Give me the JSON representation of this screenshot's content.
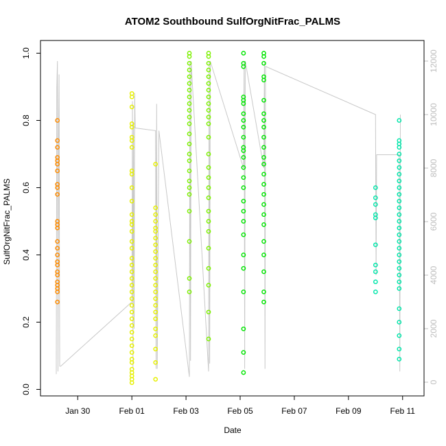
{
  "chart_data": {
    "type": "scatter",
    "title": "ATOM2 Southbound SulfOrgNitFrac_PALMS",
    "xlabel": "Date",
    "ylabel": "SulfOrgNitFrac_PALMS",
    "x_ticks": [
      "Jan 30",
      "Feb 01",
      "Feb 03",
      "Feb 05",
      "Feb 07",
      "Feb 09",
      "Feb 11"
    ],
    "x_tick_values": [
      "2017-01-30",
      "2017-02-01",
      "2017-02-03",
      "2017-02-05",
      "2017-02-07",
      "2017-02-09",
      "2017-02-11"
    ],
    "xlim": [
      "2017-01-28T15:00",
      "2017-02-11T19:00"
    ],
    "y_ticks": [
      "0.0",
      "0.2",
      "0.4",
      "0.6",
      "0.8",
      "1.0"
    ],
    "ylim": [
      0,
      1
    ],
    "y2_ticks": [
      "0",
      "2000",
      "4000",
      "6000",
      "8000",
      "10000",
      "12000"
    ],
    "y2lim": [
      0,
      12000
    ],
    "y2_color": "#bdbdbd",
    "grid": false,
    "series": [
      {
        "color": "#ff8c00",
        "x": [
          "2017-01-29T06:00",
          "2017-01-29T06:00",
          "2017-01-29T06:00",
          "2017-01-29T06:00",
          "2017-01-29T06:00",
          "2017-01-29T06:00",
          "2017-01-29T06:00",
          "2017-01-29T06:00",
          "2017-01-29T06:00",
          "2017-01-29T06:00",
          "2017-01-29T06:00",
          "2017-01-29T06:00",
          "2017-01-29T06:00",
          "2017-01-29T06:00",
          "2017-01-29T06:00",
          "2017-01-29T06:00",
          "2017-01-29T06:00",
          "2017-01-29T06:00",
          "2017-01-29T06:00",
          "2017-01-29T06:00",
          "2017-01-29T06:00",
          "2017-01-29T06:00",
          "2017-01-29T06:00",
          "2017-01-29T06:00",
          "2017-01-29T06:00"
        ],
        "y": [
          0.8,
          0.74,
          0.72,
          0.69,
          0.68,
          0.67,
          0.65,
          0.61,
          0.6,
          0.58,
          0.5,
          0.49,
          0.48,
          0.44,
          0.42,
          0.4,
          0.38,
          0.37,
          0.35,
          0.34,
          0.32,
          0.31,
          0.3,
          0.29,
          0.26
        ]
      },
      {
        "color": "#e6f000",
        "x": [
          "2017-02-01T00:00",
          "2017-02-01T00:00",
          "2017-02-01T00:00",
          "2017-02-01T00:00",
          "2017-02-01T00:00",
          "2017-02-01T00:00",
          "2017-02-01T00:00",
          "2017-02-01T00:00",
          "2017-02-01T00:00",
          "2017-02-01T00:00",
          "2017-02-01T00:00",
          "2017-02-01T00:00",
          "2017-02-01T00:00",
          "2017-02-01T00:00",
          "2017-02-01T00:00",
          "2017-02-01T00:00",
          "2017-02-01T00:00",
          "2017-02-01T00:00",
          "2017-02-01T00:00",
          "2017-02-01T00:00",
          "2017-02-01T00:00",
          "2017-02-01T00:00",
          "2017-02-01T00:00",
          "2017-02-01T00:00",
          "2017-02-01T00:00",
          "2017-02-01T00:00",
          "2017-02-01T00:00",
          "2017-02-01T00:00",
          "2017-02-01T00:00",
          "2017-02-01T00:00",
          "2017-02-01T00:00",
          "2017-02-01T00:00",
          "2017-02-01T00:00",
          "2017-02-01T00:00",
          "2017-02-01T00:00",
          "2017-02-01T00:00",
          "2017-02-01T00:00",
          "2017-02-01T00:00",
          "2017-02-01T00:00",
          "2017-02-01T00:00",
          "2017-02-01T21:00",
          "2017-02-01T21:00",
          "2017-02-01T21:00",
          "2017-02-01T21:00",
          "2017-02-01T21:00",
          "2017-02-01T21:00",
          "2017-02-01T21:00",
          "2017-02-01T21:00",
          "2017-02-01T21:00",
          "2017-02-01T21:00",
          "2017-02-01T21:00",
          "2017-02-01T21:00",
          "2017-02-01T21:00",
          "2017-02-01T21:00",
          "2017-02-01T21:00",
          "2017-02-01T21:00",
          "2017-02-01T21:00",
          "2017-02-01T21:00",
          "2017-02-01T21:00",
          "2017-02-01T21:00",
          "2017-02-01T21:00",
          "2017-02-01T21:00",
          "2017-02-01T21:00",
          "2017-02-01T21:00"
        ],
        "y": [
          0.88,
          0.87,
          0.84,
          0.79,
          0.78,
          0.75,
          0.74,
          0.72,
          0.65,
          0.64,
          0.6,
          0.56,
          0.52,
          0.49,
          0.47,
          0.44,
          0.42,
          0.39,
          0.37,
          0.35,
          0.33,
          0.31,
          0.29,
          0.27,
          0.25,
          0.23,
          0.21,
          0.19,
          0.17,
          0.15,
          0.13,
          0.11,
          0.09,
          0.08,
          0.06,
          0.05,
          0.04,
          0.03,
          0.02,
          0.5,
          0.67,
          0.54,
          0.52,
          0.5,
          0.48,
          0.47,
          0.45,
          0.43,
          0.41,
          0.39,
          0.37,
          0.35,
          0.33,
          0.31,
          0.29,
          0.27,
          0.25,
          0.23,
          0.21,
          0.18,
          0.16,
          0.12,
          0.08,
          0.03
        ]
      },
      {
        "color": "#7cf000",
        "x": [
          "2017-02-03T03:00",
          "2017-02-03T03:00",
          "2017-02-03T03:00",
          "2017-02-03T03:00",
          "2017-02-03T03:00",
          "2017-02-03T03:00",
          "2017-02-03T03:00",
          "2017-02-03T03:00",
          "2017-02-03T03:00",
          "2017-02-03T03:00",
          "2017-02-03T03:00",
          "2017-02-03T03:00",
          "2017-02-03T03:00",
          "2017-02-03T03:00",
          "2017-02-03T03:00",
          "2017-02-03T03:00",
          "2017-02-03T03:00",
          "2017-02-03T03:00",
          "2017-02-03T03:00",
          "2017-02-03T03:00",
          "2017-02-03T03:00",
          "2017-02-03T03:00",
          "2017-02-03T03:00",
          "2017-02-03T03:00",
          "2017-02-03T20:00",
          "2017-02-03T20:00",
          "2017-02-03T20:00",
          "2017-02-03T20:00",
          "2017-02-03T20:00",
          "2017-02-03T20:00",
          "2017-02-03T20:00",
          "2017-02-03T20:00",
          "2017-02-03T20:00",
          "2017-02-03T20:00",
          "2017-02-03T20:00",
          "2017-02-03T20:00",
          "2017-02-03T20:00",
          "2017-02-03T20:00",
          "2017-02-03T20:00",
          "2017-02-03T20:00",
          "2017-02-03T20:00",
          "2017-02-03T20:00",
          "2017-02-03T20:00",
          "2017-02-03T20:00",
          "2017-02-03T20:00",
          "2017-02-03T20:00",
          "2017-02-03T20:00",
          "2017-02-03T20:00",
          "2017-02-03T20:00",
          "2017-02-03T20:00"
        ],
        "y": [
          1.0,
          0.99,
          0.97,
          0.95,
          0.93,
          0.91,
          0.89,
          0.87,
          0.85,
          0.83,
          0.81,
          0.79,
          0.76,
          0.73,
          0.7,
          0.68,
          0.65,
          0.62,
          0.6,
          0.58,
          0.53,
          0.44,
          0.33,
          0.29,
          1.0,
          0.99,
          0.97,
          0.95,
          0.93,
          0.91,
          0.89,
          0.87,
          0.85,
          0.83,
          0.81,
          0.79,
          0.75,
          0.7,
          0.66,
          0.63,
          0.6,
          0.57,
          0.53,
          0.5,
          0.47,
          0.42,
          0.36,
          0.31,
          0.23,
          0.15
        ]
      },
      {
        "color": "#00e600",
        "x": [
          "2017-02-05T03:00",
          "2017-02-05T03:00",
          "2017-02-05T03:00",
          "2017-02-05T03:00",
          "2017-02-05T03:00",
          "2017-02-05T03:00",
          "2017-02-05T03:00",
          "2017-02-05T03:00",
          "2017-02-05T03:00",
          "2017-02-05T03:00",
          "2017-02-05T03:00",
          "2017-02-05T03:00",
          "2017-02-05T03:00",
          "2017-02-05T03:00",
          "2017-02-05T03:00",
          "2017-02-05T03:00",
          "2017-02-05T03:00",
          "2017-02-05T03:00",
          "2017-02-05T03:00",
          "2017-02-05T03:00",
          "2017-02-05T03:00",
          "2017-02-05T03:00",
          "2017-02-05T03:00",
          "2017-02-05T03:00",
          "2017-02-05T03:00",
          "2017-02-05T03:00",
          "2017-02-05T21:00",
          "2017-02-05T21:00",
          "2017-02-05T21:00",
          "2017-02-05T21:00",
          "2017-02-05T21:00",
          "2017-02-05T21:00",
          "2017-02-05T21:00",
          "2017-02-05T21:00",
          "2017-02-05T21:00",
          "2017-02-05T21:00",
          "2017-02-05T21:00",
          "2017-02-05T21:00",
          "2017-02-05T21:00",
          "2017-02-05T21:00",
          "2017-02-05T21:00",
          "2017-02-05T21:00",
          "2017-02-05T21:00",
          "2017-02-05T21:00",
          "2017-02-05T21:00",
          "2017-02-05T21:00",
          "2017-02-05T21:00",
          "2017-02-05T21:00",
          "2017-02-05T21:00",
          "2017-02-05T21:00"
        ],
        "y": [
          1.0,
          0.97,
          0.96,
          0.87,
          0.86,
          0.85,
          0.82,
          0.8,
          0.78,
          0.75,
          0.72,
          0.71,
          0.69,
          0.66,
          0.63,
          0.6,
          0.56,
          0.53,
          0.5,
          0.46,
          0.4,
          0.36,
          0.29,
          0.18,
          0.11,
          0.05,
          1.0,
          0.99,
          0.97,
          0.93,
          0.92,
          0.86,
          0.82,
          0.8,
          0.78,
          0.75,
          0.72,
          0.69,
          0.67,
          0.64,
          0.61,
          0.58,
          0.55,
          0.52,
          0.49,
          0.44,
          0.4,
          0.35,
          0.29,
          0.26
        ]
      },
      {
        "color": "#00e6aa",
        "x": [
          "2017-02-10T00:00",
          "2017-02-10T00:00",
          "2017-02-10T00:00",
          "2017-02-10T00:00",
          "2017-02-10T00:00",
          "2017-02-10T00:00",
          "2017-02-10T00:00",
          "2017-02-10T00:00",
          "2017-02-10T00:00",
          "2017-02-10T00:00",
          "2017-02-10T21:00",
          "2017-02-10T21:00",
          "2017-02-10T21:00",
          "2017-02-10T21:00",
          "2017-02-10T21:00",
          "2017-02-10T21:00",
          "2017-02-10T21:00",
          "2017-02-10T21:00",
          "2017-02-10T21:00",
          "2017-02-10T21:00",
          "2017-02-10T21:00",
          "2017-02-10T21:00",
          "2017-02-10T21:00",
          "2017-02-10T21:00",
          "2017-02-10T21:00",
          "2017-02-10T21:00",
          "2017-02-10T21:00",
          "2017-02-10T21:00",
          "2017-02-10T21:00",
          "2017-02-10T21:00",
          "2017-02-10T21:00",
          "2017-02-10T21:00",
          "2017-02-10T21:00",
          "2017-02-10T21:00",
          "2017-02-10T21:00",
          "2017-02-10T21:00",
          "2017-02-10T21:00",
          "2017-02-10T21:00",
          "2017-02-10T21:00",
          "2017-02-10T21:00"
        ],
        "y": [
          0.6,
          0.57,
          0.55,
          0.52,
          0.51,
          0.43,
          0.37,
          0.35,
          0.32,
          0.29,
          0.8,
          0.74,
          0.73,
          0.72,
          0.7,
          0.68,
          0.66,
          0.64,
          0.62,
          0.6,
          0.58,
          0.56,
          0.54,
          0.52,
          0.5,
          0.48,
          0.46,
          0.44,
          0.42,
          0.4,
          0.38,
          0.36,
          0.34,
          0.32,
          0.3,
          0.24,
          0.2,
          0.16,
          0.12,
          0.09
        ]
      }
    ],
    "altitude_series": {
      "color": "#c8c8c8",
      "axis": "y2",
      "x": [
        "2017-01-29T05:00",
        "2017-01-29T05:30",
        "2017-01-29T06:00",
        "2017-01-29T06:30",
        "2017-01-29T07:00",
        "2017-01-29T07:30",
        "2017-01-29T08:00",
        "2017-01-29T09:00",
        "2017-02-01T00:00",
        "2017-02-01T00:30",
        "2017-02-01T01:00",
        "2017-02-01T01:30",
        "2017-02-01T02:00",
        "2017-02-01T02:30",
        "2017-02-01T03:00",
        "2017-02-01T21:00",
        "2017-02-01T21:30",
        "2017-02-01T22:00",
        "2017-02-01T22:30",
        "2017-02-02T00:00",
        "2017-02-03T03:00",
        "2017-02-03T03:30",
        "2017-02-03T04:00",
        "2017-02-03T04:30",
        "2017-02-03T20:00",
        "2017-02-03T20:30",
        "2017-02-03T21:00",
        "2017-02-03T21:30",
        "2017-02-05T03:00",
        "2017-02-05T03:30",
        "2017-02-05T04:00",
        "2017-02-05T04:30",
        "2017-02-05T21:00",
        "2017-02-05T21:30",
        "2017-02-05T22:00",
        "2017-02-05T22:30",
        "2017-02-10T00:00",
        "2017-02-10T00:30",
        "2017-02-10T01:00",
        "2017-02-10T21:00",
        "2017-02-10T21:30",
        "2017-02-10T22:00"
      ],
      "y": [
        300,
        11000,
        12000,
        400,
        9000,
        11500,
        600,
        600,
        3000,
        10500,
        500,
        9600,
        2000,
        10800,
        9500,
        9400,
        500,
        10400,
        500,
        9400,
        200,
        12000,
        800,
        12000,
        400,
        12000,
        700,
        12000,
        8000,
        12000,
        500,
        12000,
        8000,
        12000,
        500,
        11800,
        10000,
        4000,
        8500,
        8500,
        400,
        10000
      ]
    }
  }
}
